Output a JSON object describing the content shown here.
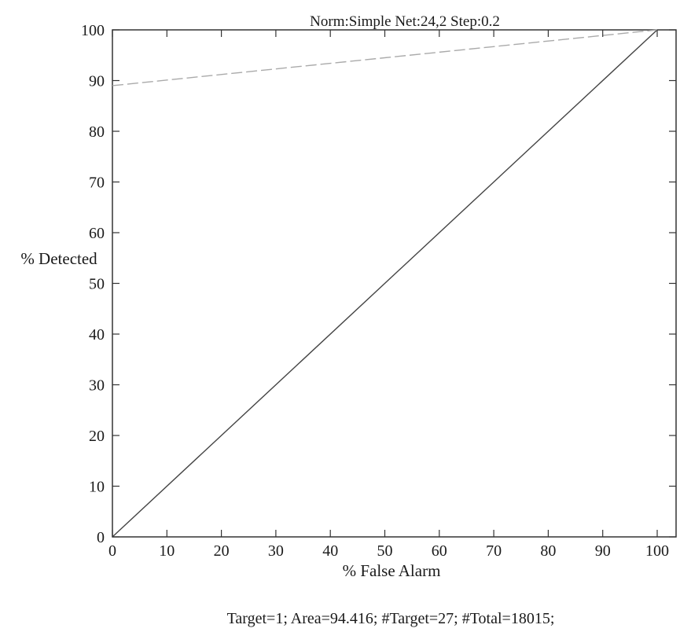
{
  "chart_data": {
    "type": "line",
    "title": "Norm:Simple Net:24,2 Step:0.2",
    "xlabel": "% False Alarm",
    "ylabel": "% Detected",
    "xlim": [
      0,
      100
    ],
    "ylim": [
      0,
      100
    ],
    "x_ticks": [
      0,
      10,
      20,
      30,
      40,
      50,
      60,
      70,
      80,
      90,
      100
    ],
    "y_ticks": [
      0,
      10,
      20,
      30,
      40,
      50,
      60,
      70,
      80,
      90,
      100
    ],
    "grid": false,
    "series": [
      {
        "color": "#444444",
        "dash": "solid",
        "points": [
          [
            0,
            0
          ],
          [
            100,
            100
          ]
        ]
      },
      {
        "color": "#aaaaaa",
        "dash": "dashed",
        "points": [
          [
            0,
            89
          ],
          [
            100,
            100
          ]
        ]
      }
    ],
    "footer": "Target=1; Area=94.416; #Target=27; #Total=18015;"
  }
}
